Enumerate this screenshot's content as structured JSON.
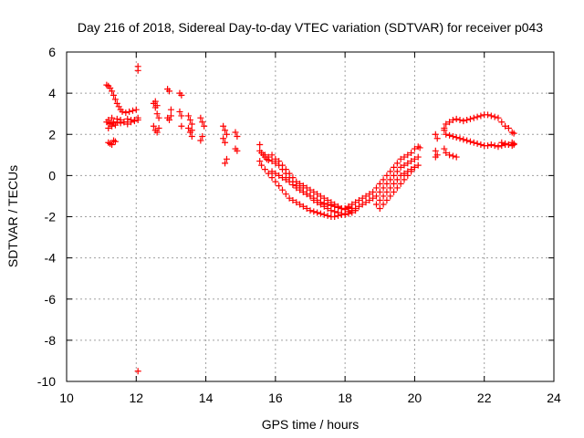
{
  "chart_data": {
    "type": "scatter",
    "title": "Day 216 of 2018, Sidereal Day-to-day VTEC variation (SDTVAR) for receiver p043",
    "xlabel": "GPS time / hours",
    "ylabel": "SDTVAR / TECUs",
    "xlim": [
      10,
      24
    ],
    "ylim": [
      -10,
      6
    ],
    "xticks": [
      10,
      12,
      14,
      16,
      18,
      20,
      22,
      24
    ],
    "yticks": [
      -10,
      -8,
      -6,
      -4,
      -2,
      0,
      2,
      4,
      6
    ],
    "xtick_labels": [
      "10",
      "12",
      "14",
      "16",
      "18",
      "20",
      "22",
      "24"
    ],
    "ytick_labels": [
      "-10",
      "-8",
      "-6",
      "-4",
      "-2",
      "0",
      "2",
      "4",
      "6"
    ],
    "grid": true,
    "marker": "+",
    "color": "#ff0000",
    "series": [
      {
        "name": "SDTVAR",
        "x": [
          11.15,
          11.2,
          11.25,
          11.3,
          11.35,
          11.4,
          11.45,
          11.5,
          11.55,
          11.6,
          11.7,
          11.8,
          11.9,
          12.0,
          11.15,
          11.2,
          11.25,
          11.3,
          11.35,
          11.45,
          11.55,
          11.65,
          11.75,
          11.85,
          11.95,
          12.05,
          11.2,
          11.25,
          11.3,
          11.35,
          11.4,
          11.45,
          11.55,
          11.65,
          11.75,
          11.85,
          11.95,
          12.05,
          11.2,
          11.25,
          11.3,
          11.35,
          11.4,
          12.05,
          12.05,
          12.05,
          12.5,
          12.55,
          12.6,
          12.65,
          12.5,
          12.55,
          12.6,
          12.65,
          12.55,
          12.6,
          12.9,
          12.95,
          13.0,
          12.9,
          12.95,
          13.0,
          13.25,
          13.3,
          13.25,
          13.3,
          13.3,
          13.5,
          13.55,
          13.6,
          13.5,
          13.55,
          13.6,
          13.6,
          13.85,
          13.9,
          13.95,
          13.9,
          13.85,
          14.5,
          14.55,
          14.6,
          14.5,
          14.55,
          14.6,
          14.55,
          14.85,
          14.9,
          14.85,
          14.9,
          15.55,
          15.6,
          15.65,
          15.7,
          15.75,
          15.8,
          15.9,
          16.0,
          16.1,
          16.2,
          16.3,
          16.4,
          16.5,
          16.6,
          16.7,
          16.8,
          16.9,
          17.0,
          17.1,
          17.2,
          17.3,
          17.4,
          17.5,
          17.6,
          17.7,
          17.8,
          17.9,
          18.0,
          18.1,
          18.2,
          18.3,
          15.55,
          15.6,
          15.7,
          15.8,
          15.9,
          16.0,
          16.1,
          16.2,
          16.3,
          16.4,
          16.5,
          16.6,
          16.7,
          16.8,
          16.9,
          17.0,
          17.1,
          17.2,
          17.3,
          17.4,
          17.5,
          17.6,
          17.7,
          17.8,
          17.9,
          18.0,
          18.1,
          18.2,
          15.7,
          15.8,
          15.9,
          16.0,
          16.1,
          16.2,
          16.3,
          16.4,
          16.5,
          16.6,
          16.7,
          16.8,
          16.9,
          17.0,
          17.1,
          17.2,
          17.3,
          17.4,
          17.5,
          17.6,
          17.7,
          17.8,
          17.9,
          18.0,
          15.9,
          16.0,
          16.1,
          16.2,
          16.3,
          16.4,
          16.5,
          16.6,
          16.7,
          16.8,
          16.9,
          17.0,
          17.1,
          17.2,
          17.3,
          17.4,
          17.5,
          17.6,
          17.7,
          17.8,
          17.9,
          18.0,
          18.1,
          15.55,
          18.1,
          18.2,
          18.3,
          18.4,
          18.5,
          18.6,
          18.7,
          18.8,
          18.9,
          19.0,
          19.1,
          19.2,
          19.3,
          19.4,
          19.5,
          19.6,
          19.7,
          19.8,
          19.9,
          20.0,
          20.1,
          20.15,
          18.2,
          18.3,
          18.4,
          18.5,
          18.6,
          18.7,
          18.8,
          18.9,
          19.0,
          19.1,
          19.2,
          19.3,
          19.4,
          19.5,
          19.6,
          19.7,
          19.8,
          19.9,
          20.0,
          20.1,
          18.9,
          19.0,
          19.1,
          19.2,
          19.3,
          19.4,
          19.5,
          19.6,
          19.7,
          19.8,
          19.9,
          20.0,
          20.1,
          19.0,
          19.1,
          19.2,
          19.3,
          19.4,
          19.5,
          19.6,
          19.7,
          19.8,
          19.9,
          20.0,
          20.6,
          20.65,
          20.6,
          20.65,
          20.6,
          20.85,
          20.9,
          21.0,
          21.1,
          21.2,
          21.3,
          21.4,
          21.5,
          21.6,
          21.7,
          21.8,
          21.9,
          22.0,
          22.1,
          22.2,
          22.3,
          22.4,
          22.5,
          22.6,
          22.7,
          22.8,
          22.85,
          20.85,
          20.9,
          21.0,
          21.1,
          21.2,
          21.3,
          21.4,
          21.5,
          21.6,
          21.7,
          21.8,
          21.9,
          22.0,
          22.1,
          22.2,
          22.3,
          22.4,
          22.5,
          22.6,
          22.7,
          22.8,
          22.85,
          20.85,
          20.9,
          21.0,
          21.1,
          21.2,
          22.5,
          22.6,
          22.7,
          22.8,
          22.85
        ],
        "y": [
          4.4,
          4.35,
          4.25,
          4.1,
          3.9,
          3.7,
          3.5,
          3.35,
          3.2,
          3.1,
          3.05,
          3.1,
          3.15,
          3.2,
          2.6,
          2.7,
          2.55,
          2.8,
          2.6,
          2.75,
          2.7,
          2.6,
          2.75,
          2.7,
          2.65,
          2.7,
          2.3,
          2.5,
          2.4,
          2.55,
          2.45,
          2.6,
          2.55,
          2.6,
          2.5,
          2.6,
          2.7,
          2.8,
          1.6,
          1.55,
          1.5,
          1.7,
          1.65,
          5.3,
          5.1,
          -9.5,
          3.5,
          3.3,
          3.0,
          2.8,
          2.4,
          2.2,
          2.1,
          2.3,
          3.6,
          3.4,
          4.2,
          4.1,
          3.2,
          2.8,
          2.7,
          2.9,
          4.0,
          3.9,
          3.1,
          2.9,
          2.4,
          2.9,
          2.7,
          2.5,
          2.3,
          2.1,
          1.9,
          2.2,
          2.8,
          2.6,
          2.4,
          1.9,
          1.7,
          2.4,
          2.2,
          2.0,
          1.8,
          1.6,
          0.8,
          0.6,
          2.1,
          1.9,
          1.3,
          1.2,
          1.2,
          1.1,
          1.0,
          0.9,
          0.8,
          0.75,
          0.7,
          0.6,
          0.5,
          0.3,
          0.1,
          -0.1,
          -0.3,
          -0.5,
          -0.6,
          -0.8,
          -0.9,
          -1.0,
          -1.2,
          -1.3,
          -1.4,
          -1.5,
          -1.6,
          -1.7,
          -1.75,
          -1.8,
          -1.9,
          -1.9,
          -1.85,
          -1.8,
          -1.7,
          0.7,
          0.5,
          0.3,
          0.1,
          -0.1,
          -0.3,
          -0.5,
          -0.7,
          -0.9,
          -1.1,
          -1.2,
          -1.3,
          -1.4,
          -1.5,
          -1.6,
          -1.7,
          -1.75,
          -1.8,
          -1.85,
          -1.9,
          -1.95,
          -2.0,
          -2.0,
          -1.95,
          -1.9,
          -1.85,
          -1.75,
          -1.6,
          1.0,
          0.9,
          1.0,
          0.8,
          0.7,
          0.5,
          0.3,
          0.1,
          -0.1,
          -0.3,
          -0.4,
          -0.5,
          -0.6,
          -0.7,
          -0.8,
          -0.9,
          -1.0,
          -1.1,
          -1.2,
          -1.3,
          -1.4,
          -1.5,
          -1.6,
          -1.65,
          0.2,
          0.1,
          0.0,
          -0.1,
          -0.2,
          -0.3,
          -0.45,
          -0.6,
          -0.7,
          -0.8,
          -0.9,
          -1.0,
          -1.1,
          -1.2,
          -1.3,
          -1.35,
          -1.4,
          -1.45,
          -1.5,
          -1.55,
          -1.6,
          -1.6,
          -1.55,
          1.5,
          -1.5,
          -1.4,
          -1.3,
          -1.2,
          -1.1,
          -1.0,
          -0.9,
          -0.8,
          -0.6,
          -0.4,
          -0.2,
          0.0,
          0.2,
          0.4,
          0.6,
          0.8,
          0.9,
          1.0,
          1.1,
          1.3,
          1.4,
          1.35,
          -1.7,
          -1.6,
          -1.5,
          -1.4,
          -1.3,
          -1.2,
          -1.1,
          -1.0,
          -0.8,
          -0.6,
          -0.4,
          -0.2,
          0.0,
          0.2,
          0.4,
          0.5,
          0.6,
          0.7,
          0.8,
          0.9,
          -1.4,
          -1.2,
          -1.0,
          -0.8,
          -0.6,
          -0.4,
          -0.2,
          0.0,
          0.1,
          0.2,
          0.3,
          0.4,
          0.5,
          -1.6,
          -1.4,
          -1.2,
          -1.0,
          -0.8,
          -0.6,
          -0.4,
          -0.2,
          0.0,
          0.2,
          0.4,
          2.0,
          1.8,
          1.2,
          1.0,
          0.9,
          2.3,
          2.5,
          2.6,
          2.7,
          2.75,
          2.7,
          2.65,
          2.7,
          2.75,
          2.8,
          2.85,
          2.9,
          2.95,
          2.95,
          2.9,
          2.85,
          2.8,
          2.6,
          2.4,
          2.3,
          2.1,
          2.05,
          2.2,
          2.0,
          1.95,
          1.9,
          1.85,
          1.8,
          1.75,
          1.7,
          1.65,
          1.6,
          1.55,
          1.5,
          1.45,
          1.45,
          1.5,
          1.45,
          1.4,
          1.45,
          1.5,
          1.5,
          1.45,
          1.5,
          1.3,
          1.1,
          1.0,
          0.95,
          0.9,
          1.6,
          1.55,
          1.5,
          1.6,
          1.55
        ]
      }
    ]
  }
}
